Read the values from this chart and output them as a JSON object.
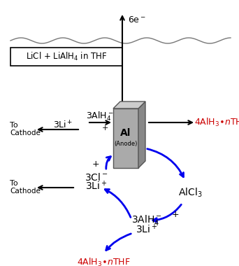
{
  "bg_color": "#ffffff",
  "box_text": "LiCl + LiAlH$_4$ in THF",
  "electron_label": "6e$^-$",
  "anode_label_main": "Al",
  "anode_label_sub": "(Anode)",
  "blue_color": "#0000ee",
  "black_color": "#000000",
  "red_color": "#cc0000",
  "figsize": [
    3.42,
    3.8
  ],
  "dpi": 100,
  "xlim": [
    0,
    342
  ],
  "ylim": [
    0,
    380
  ]
}
